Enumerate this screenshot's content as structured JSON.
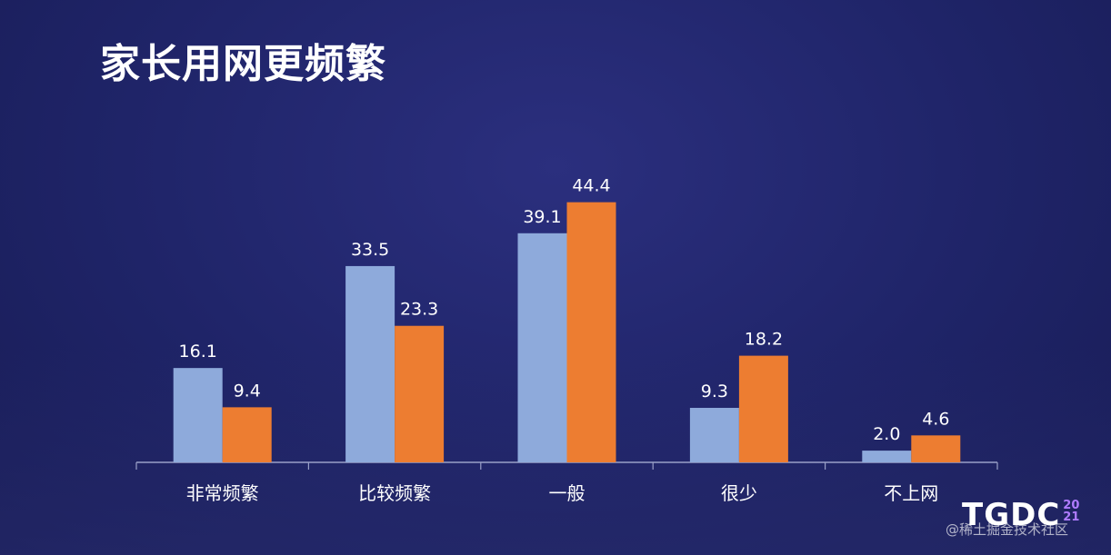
{
  "slide": {
    "title": "家长用网更频繁",
    "logo": {
      "text": "TGDC",
      "year_top": "20",
      "year_bottom": "21"
    },
    "watermark": "@稀土掘金技术社区"
  },
  "chart_data": {
    "type": "bar",
    "title": "家长用网更频繁",
    "categories": [
      "非常频繁",
      "比较频繁",
      "一般",
      "很少",
      "不上网"
    ],
    "series": [
      {
        "values": [
          16.1,
          33.5,
          39.1,
          9.3,
          2.0
        ],
        "color": "#8eaadb"
      },
      {
        "values": [
          9.4,
          23.3,
          44.4,
          18.2,
          4.6
        ],
        "color": "#ed7d31"
      }
    ],
    "data_labels": [
      [
        "16.1",
        "33.5",
        "39.1",
        "9.3",
        "2.0"
      ],
      [
        "9.4",
        "23.3",
        "44.4",
        "18.2",
        "4.6"
      ]
    ],
    "ylim": [
      0,
      50
    ],
    "grid": false,
    "legend": "none",
    "axis_color": "#9aa0c8",
    "label_color": "#ffffff"
  }
}
